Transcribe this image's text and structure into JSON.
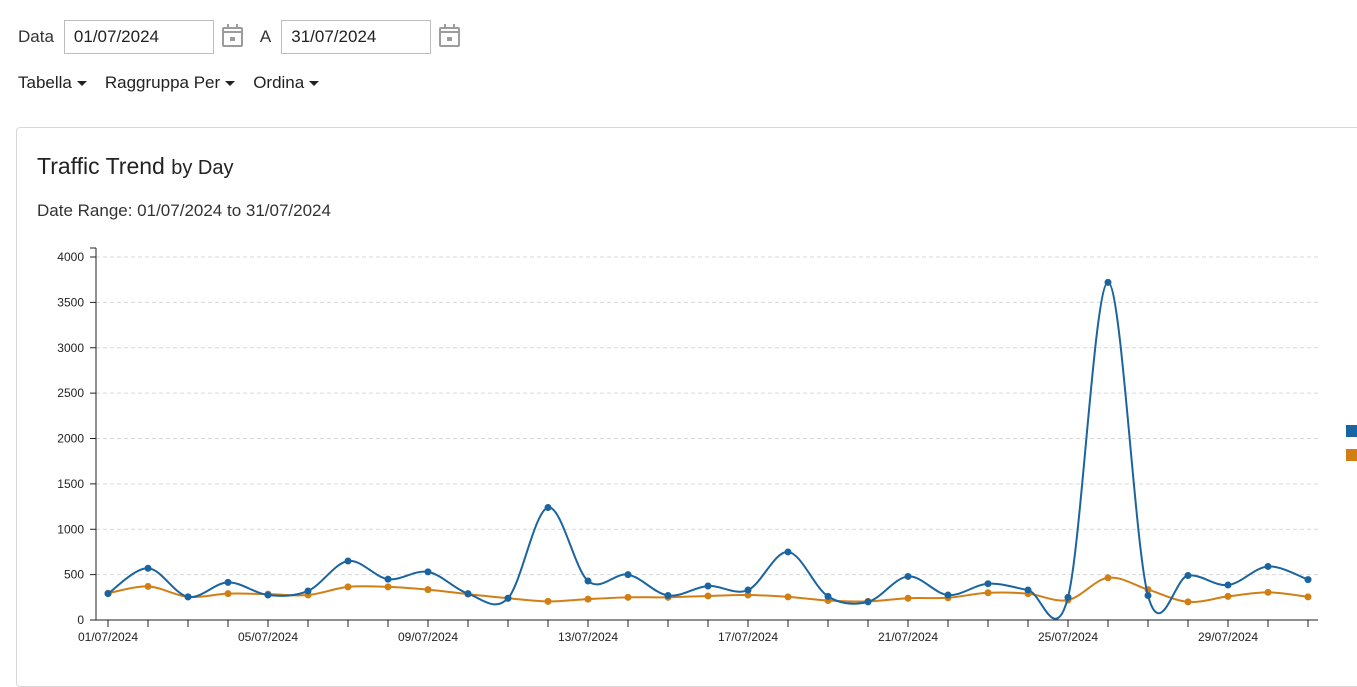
{
  "filters": {
    "from_label": "Data",
    "from_value": "01/07/2024",
    "to_label": "A",
    "to_value": "31/07/2024",
    "calendar_icon": "calendar-icon"
  },
  "menus": [
    {
      "label": "Tabella"
    },
    {
      "label": "Raggruppa Per"
    },
    {
      "label": "Ordina"
    }
  ],
  "card": {
    "title": "Traffic Trend",
    "title_suffix": "by Day",
    "date_range": "Date Range: 01/07/2024 to 31/07/2024"
  },
  "colors": {
    "series1": "#1a64a0",
    "series2": "#d17f14"
  },
  "chart_data": {
    "type": "line",
    "x": [
      "01/07/2024",
      "02/07/2024",
      "03/07/2024",
      "04/07/2024",
      "05/07/2024",
      "06/07/2024",
      "07/07/2024",
      "08/07/2024",
      "09/07/2024",
      "10/07/2024",
      "11/07/2024",
      "12/07/2024",
      "13/07/2024",
      "14/07/2024",
      "15/07/2024",
      "16/07/2024",
      "17/07/2024",
      "18/07/2024",
      "19/07/2024",
      "20/07/2024",
      "21/07/2024",
      "22/07/2024",
      "23/07/2024",
      "24/07/2024",
      "25/07/2024",
      "26/07/2024",
      "27/07/2024",
      "28/07/2024",
      "29/07/2024",
      "30/07/2024",
      "31/07/2024"
    ],
    "x_tick_labels": [
      "01/07/2024",
      "05/07/2024",
      "09/07/2024",
      "13/07/2024",
      "17/07/2024",
      "21/07/2024",
      "25/07/2024",
      "29/07/2024"
    ],
    "series": [
      {
        "values": [
          290,
          570,
          255,
          415,
          275,
          320,
          650,
          450,
          530,
          290,
          240,
          1240,
          430,
          500,
          270,
          375,
          330,
          750,
          260,
          200,
          480,
          275,
          400,
          330,
          250,
          3720,
          270,
          490,
          385,
          590,
          445
        ]
      },
      {
        "values": [
          295,
          370,
          255,
          290,
          285,
          275,
          365,
          365,
          335,
          285,
          240,
          205,
          230,
          250,
          250,
          265,
          275,
          255,
          215,
          205,
          240,
          245,
          300,
          290,
          220,
          465,
          335,
          200,
          260,
          305,
          255
        ]
      }
    ],
    "ylim": [
      0,
      4000
    ],
    "y_ticks": [
      0,
      500,
      1000,
      1500,
      2000,
      2500,
      3000,
      3500,
      4000
    ],
    "grid": true,
    "legend": "right"
  }
}
